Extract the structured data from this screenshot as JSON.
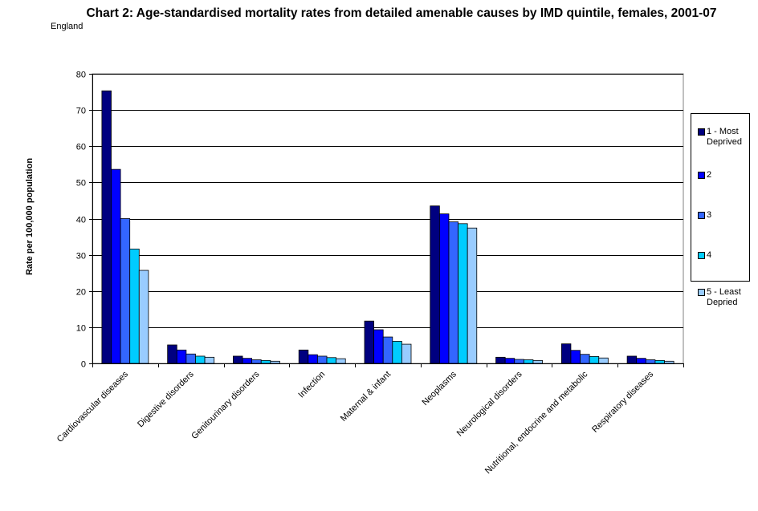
{
  "title": "Chart 2: Age-standardised mortality rates from detailed amenable causes by IMD quintile, females, 2001-07",
  "corner_label": "England",
  "chart_data": {
    "type": "bar",
    "title": "Chart 2: Age-standardised mortality rates from detailed amenable causes by IMD quintile, females, 2001-07",
    "xlabel": "",
    "ylabel": "Rate per 100,000 population",
    "ylim": [
      0,
      80
    ],
    "yticks": [
      0,
      10,
      20,
      30,
      40,
      50,
      60,
      70,
      80
    ],
    "grid": true,
    "legend_position": "right",
    "categories": [
      "Cardiovascular diseases",
      "Digestive disorders",
      "Genitourinary disorders",
      "Infection",
      "Maternal & infant",
      "Neoplasms",
      "Neurological disorders",
      "Nutritional, endocrine and metabolic",
      "Respiratory diseases"
    ],
    "series": [
      {
        "name": "1 - Most Deprived",
        "color": "#000080",
        "values": [
          75.3,
          5.1,
          2.0,
          3.7,
          11.7,
          43.5,
          1.7,
          5.4,
          2.0
        ]
      },
      {
        "name": "2",
        "color": "#0000ff",
        "values": [
          53.6,
          3.7,
          1.4,
          2.4,
          9.3,
          41.3,
          1.4,
          3.6,
          1.4
        ]
      },
      {
        "name": "3",
        "color": "#3366ff",
        "values": [
          40.0,
          2.6,
          1.0,
          2.0,
          7.3,
          39.1,
          1.1,
          2.5,
          1.0
        ]
      },
      {
        "name": "4",
        "color": "#00ccff",
        "values": [
          31.6,
          2.0,
          0.8,
          1.6,
          6.1,
          38.6,
          1.0,
          1.9,
          0.8
        ]
      },
      {
        "name": "5 - Least Depried",
        "color": "#99ccff",
        "values": [
          25.7,
          1.7,
          0.6,
          1.3,
          5.3,
          37.4,
          0.8,
          1.5,
          0.6
        ]
      }
    ]
  }
}
